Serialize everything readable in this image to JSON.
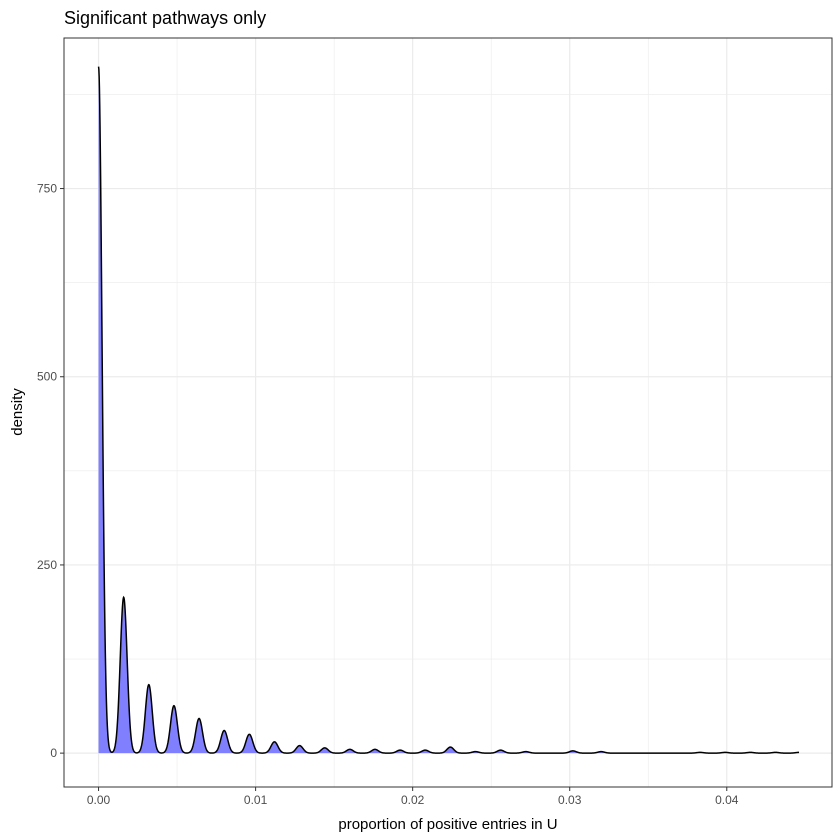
{
  "chart_data": {
    "type": "area",
    "title": "Significant pathways only",
    "xlabel": "proportion of positive entries in U",
    "ylabel": "density",
    "xlim": [
      -0.0022,
      0.0467
    ],
    "ylim": [
      -45,
      950
    ],
    "x_ticks": [
      0.0,
      0.01,
      0.02,
      0.03,
      0.04
    ],
    "x_tick_labels": [
      "0.00",
      "0.01",
      "0.02",
      "0.03",
      "0.04"
    ],
    "y_ticks": [
      0,
      250,
      500,
      750
    ],
    "y_tick_labels": [
      "0",
      "250",
      "500",
      "750"
    ],
    "grid": true,
    "fill_color": "#8080ff",
    "line_color": "#000000",
    "panel_border_color": "#333333",
    "grid_color": "#ebebeb",
    "x_max": 0.0446,
    "series": [
      {
        "peaks": [
          {
            "x": 0.0,
            "y": 912
          },
          {
            "x": 0.0016,
            "y": 207
          },
          {
            "x": 0.0032,
            "y": 91
          },
          {
            "x": 0.0048,
            "y": 63
          },
          {
            "x": 0.0064,
            "y": 46
          },
          {
            "x": 0.008,
            "y": 30
          },
          {
            "x": 0.0096,
            "y": 25
          },
          {
            "x": 0.0112,
            "y": 15
          },
          {
            "x": 0.0128,
            "y": 10
          },
          {
            "x": 0.0144,
            "y": 7
          },
          {
            "x": 0.016,
            "y": 5
          },
          {
            "x": 0.0176,
            "y": 5
          },
          {
            "x": 0.0192,
            "y": 4
          },
          {
            "x": 0.0208,
            "y": 4
          },
          {
            "x": 0.0224,
            "y": 8
          },
          {
            "x": 0.024,
            "y": 2
          },
          {
            "x": 0.0256,
            "y": 4
          },
          {
            "x": 0.0272,
            "y": 2
          },
          {
            "x": 0.0302,
            "y": 3
          },
          {
            "x": 0.032,
            "y": 2
          },
          {
            "x": 0.0383,
            "y": 1
          },
          {
            "x": 0.0399,
            "y": 1
          },
          {
            "x": 0.0415,
            "y": 1
          },
          {
            "x": 0.0431,
            "y": 1
          },
          {
            "x": 0.0446,
            "y": 1
          }
        ]
      }
    ]
  }
}
